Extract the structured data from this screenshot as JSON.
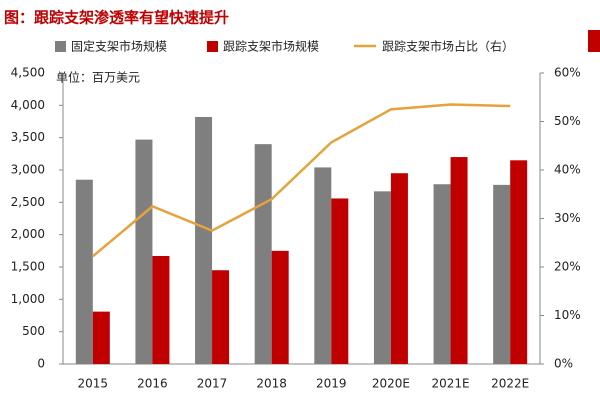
{
  "chart_data": {
    "type": "bar-line",
    "title": "图：跟踪支架渗透率有望快速提升",
    "annotation": "单位：百万美元",
    "categories": [
      "2015",
      "2016",
      "2017",
      "2018",
      "2019",
      "2020E",
      "2021E",
      "2022E"
    ],
    "series": [
      {
        "name": "固定支架市场规模",
        "color": "#7f7f7f",
        "type": "bar",
        "values": [
          2850,
          3470,
          3820,
          3400,
          3040,
          2670,
          2780,
          2770
        ]
      },
      {
        "name": "跟踪支架市场规模",
        "color": "#c00000",
        "type": "bar",
        "values": [
          810,
          1670,
          1450,
          1750,
          2560,
          2950,
          3200,
          3150
        ]
      },
      {
        "name": "跟踪支架市场占比（右）",
        "color": "#e6a23c",
        "type": "line",
        "axis": "y2",
        "values": [
          22.2,
          32.5,
          27.5,
          34,
          45.7,
          52.5,
          53.5,
          53.2
        ]
      }
    ],
    "ylim": [
      0,
      4500
    ],
    "yticks": [
      0,
      500,
      {
        "value": 1000,
        "label": "1,000"
      },
      {
        "value": 1500,
        "label": "1,500"
      },
      {
        "value": 2000,
        "label": "2,000"
      },
      {
        "value": 2500,
        "label": "2,500"
      },
      {
        "value": 3000,
        "label": "3,000"
      },
      {
        "value": 3500,
        "label": "3,500"
      },
      {
        "value": 4000,
        "label": "4,000"
      },
      {
        "value": 4500,
        "label": "4,500"
      }
    ],
    "y2lim": [
      0,
      60
    ],
    "y2ticks": [
      {
        "value": 0,
        "label": "0%"
      },
      {
        "value": 10,
        "label": "10%"
      },
      {
        "value": 20,
        "label": "20%"
      },
      {
        "value": 30,
        "label": "30%"
      },
      {
        "value": 40,
        "label": "40%"
      },
      {
        "value": 50,
        "label": "50%"
      },
      {
        "value": 60,
        "label": "60%"
      }
    ]
  }
}
